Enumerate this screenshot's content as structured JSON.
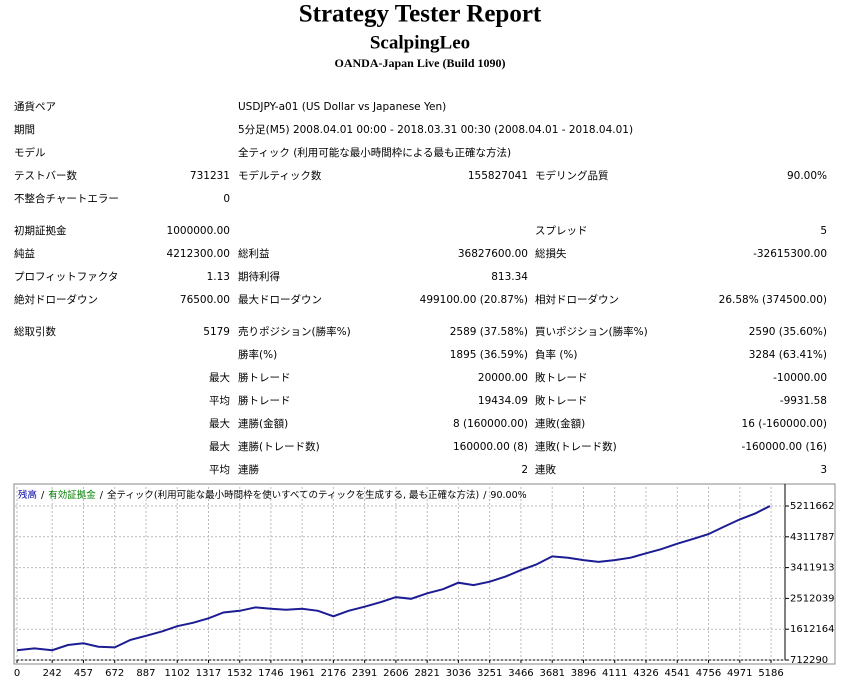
{
  "header": {
    "title": "Strategy Tester Report",
    "subtitle": "ScalpingLeo",
    "server": "OANDA-Japan Live (Build 1090)"
  },
  "table": {
    "sections": [
      [
        [
          "通貨ペア",
          null,
          "USDJPY-a01 (US Dollar vs Japanese Yen)"
        ],
        [
          "期間",
          null,
          "5分足(M5) 2008.04.01 00:00 - 2018.03.31 00:30 (2008.04.01 - 2018.04.01)"
        ],
        [
          "モデル",
          null,
          "全ティック (利用可能な最小時間枠による最も正確な方法)"
        ],
        [
          "テストバー数",
          "731231",
          "モデルティック数",
          "155827041",
          "モデリング品質",
          "90.00%"
        ],
        [
          "不整合チャートエラー",
          "0"
        ]
      ],
      [
        [
          "初期証拠金",
          "1000000.00",
          null,
          null,
          "スプレッド",
          "5"
        ],
        [
          "純益",
          "4212300.00",
          "総利益",
          "36827600.00",
          "総損失",
          "-32615300.00"
        ],
        [
          "プロフィットファクタ",
          "1.13",
          "期待利得",
          "813.34"
        ],
        [
          "絶対ドローダウン",
          "76500.00",
          "最大ドローダウン",
          "499100.00 (20.87%)",
          "相対ドローダウン",
          "26.58% (374500.00)"
        ]
      ],
      [
        [
          "総取引数",
          "5179",
          "売りポジション(勝率%)",
          "2589 (37.58%)",
          "買いポジション(勝率%)",
          "2590 (35.60%)"
        ],
        [
          null,
          null,
          "勝率(%)",
          "1895 (36.59%)",
          "負率 (%)",
          "3284 (63.41%)"
        ],
        [
          null,
          "最大",
          "勝トレード",
          "20000.00",
          "敗トレード",
          "-10000.00"
        ],
        [
          null,
          "平均",
          "勝トレード",
          "19434.09",
          "敗トレード",
          "-9931.58"
        ],
        [
          null,
          "最大",
          "連勝(金額)",
          "8 (160000.00)",
          "連敗(金額)",
          "16 (-160000.00)"
        ],
        [
          null,
          "最大",
          "連勝(トレード数)",
          "160000.00 (8)",
          "連敗(トレード数)",
          "-160000.00 (16)"
        ],
        [
          null,
          "平均",
          "連勝",
          "2",
          "連敗",
          "3"
        ]
      ]
    ]
  },
  "chart_data": {
    "type": "line",
    "legend": [
      {
        "text": "残高",
        "color": "#0000a0"
      },
      {
        "text": "/",
        "color": "#000000"
      },
      {
        "text": "有効証拠金",
        "color": "#008000"
      },
      {
        "text": "/",
        "color": "#000000"
      },
      {
        "text": "全ティック(利用可能な最小時間枠を使いすべてのティックを生成する, 最も正確な方法)",
        "color": "#000000"
      },
      {
        "text": "/",
        "color": "#000000"
      },
      {
        "text": "90.00%",
        "color": "#000000"
      }
    ],
    "x": [
      0,
      120,
      242,
      350,
      457,
      560,
      672,
      780,
      887,
      1000,
      1102,
      1210,
      1317,
      1420,
      1532,
      1640,
      1746,
      1850,
      1961,
      2070,
      2176,
      2280,
      2391,
      2500,
      2606,
      2710,
      2821,
      2930,
      3036,
      3140,
      3251,
      3360,
      3466,
      3570,
      3681,
      3790,
      3896,
      4000,
      4111,
      4220,
      4326,
      4430,
      4541,
      4650,
      4756,
      4860,
      4971,
      5080,
      5179
    ],
    "series": [
      {
        "name": "残高",
        "color": "#1c1c94",
        "values": [
          1000000,
          1050000,
          1000000,
          1150000,
          1200000,
          1100000,
          1080000,
          1300000,
          1420000,
          1550000,
          1700000,
          1800000,
          1930000,
          2100000,
          2150000,
          2250000,
          2210000,
          2180000,
          2210000,
          2150000,
          1990000,
          2150000,
          2270000,
          2400000,
          2550000,
          2500000,
          2660000,
          2780000,
          2970000,
          2900000,
          3000000,
          3150000,
          3340000,
          3500000,
          3740000,
          3700000,
          3630000,
          3580000,
          3630000,
          3700000,
          3830000,
          3950000,
          4110000,
          4250000,
          4390000,
          4600000,
          4820000,
          5000000,
          5212300
        ]
      }
    ],
    "xlim": [
      0,
      5282
    ],
    "ylim": [
      712290,
      5767000
    ],
    "xticks": [
      0,
      242,
      457,
      672,
      887,
      1102,
      1317,
      1532,
      1746,
      1961,
      2176,
      2391,
      2606,
      2821,
      3036,
      3251,
      3466,
      3681,
      3896,
      4111,
      4326,
      4541,
      4756,
      4971,
      5186
    ],
    "yticks": [
      712290,
      1612164,
      2512039,
      3411913,
      4311787,
      5211662
    ],
    "grid": true
  }
}
